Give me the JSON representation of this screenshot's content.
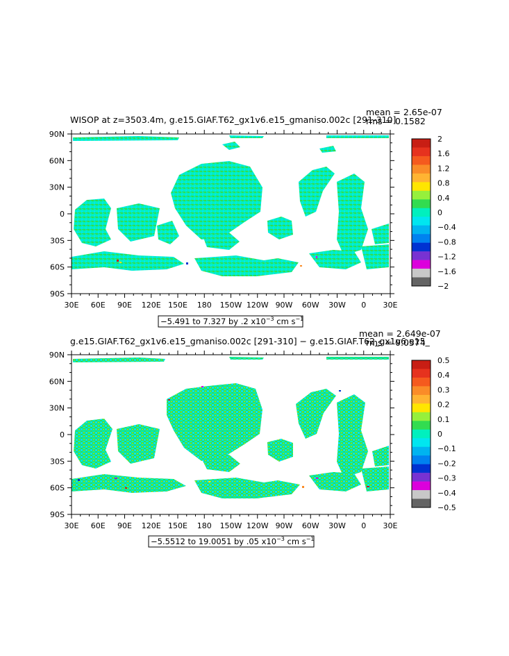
{
  "panels": [
    {
      "title": "WISOP at z=3503.4m, g.e15.GIAF.T62_gx1v6.e15_gmaniso.002c [291-310]",
      "mean_text": "mean = 2.65e-07",
      "rms_text": "rms = 0.1582",
      "range_text": "−5.491 to 7.327 by .2 x10",
      "range_exp": "−3",
      "range_unit": " cm s",
      "range_unit_exp": "−1"
    },
    {
      "title": "g.e15.GIAF.T62_gx1v6.e15_gmaniso.002c [291-310] − g.e15.GIAF.T62_gx1v6.e15_",
      "mean_text": "mean = 2.649e-07",
      "rms_text": "rms = 0.0574",
      "range_text": "−5.5512 to 19.0051 by .05 x10",
      "range_exp": "−3",
      "range_unit": " cm s",
      "range_unit_exp": "−1"
    }
  ],
  "chart_data": [
    {
      "type": "heatmap",
      "title": "WISOP at z=3503.4m, g.e15.GIAF.T62_gx1v6.e15_gmaniso.002c [291-310]",
      "x_ticks": [
        "30E",
        "60E",
        "90E",
        "120E",
        "150E",
        "180",
        "150W",
        "120W",
        "90W",
        "60W",
        "30W",
        "0",
        "30E"
      ],
      "y_ticks": [
        "90N",
        "60N",
        "30N",
        "0",
        "30S",
        "60S",
        "90S"
      ],
      "xlim": [
        30,
        390
      ],
      "ylim": [
        -90,
        90
      ],
      "colorbar": {
        "labels": [
          "2",
          "1.6",
          "1.2",
          "0.8",
          "0.4",
          "0",
          "−0.4",
          "−0.8",
          "−1.2",
          "−1.6",
          "−2"
        ],
        "colors": [
          "#c81e14",
          "#e6321e",
          "#f55a1e",
          "#fa8c28",
          "#ffb432",
          "#ffe600",
          "#96f03c",
          "#32dc50",
          "#00f0be",
          "#00e6f0",
          "#00b4f0",
          "#0082f0",
          "#0032d2",
          "#7832d2",
          "#dc00dc",
          "#c8c8c8",
          "#646464"
        ]
      },
      "mean": 2.65e-07,
      "rms": 0.1582,
      "contour_range": "-5.491 to 7.327 by .2 x10^-3 cm s^-1"
    },
    {
      "type": "heatmap",
      "title": "g.e15.GIAF.T62_gx1v6.e15_gmaniso.002c [291-310] − g.e15.GIAF.T62_gx1v6.e15_",
      "x_ticks": [
        "30E",
        "60E",
        "90E",
        "120E",
        "150E",
        "180",
        "150W",
        "120W",
        "90W",
        "60W",
        "30W",
        "0",
        "30E"
      ],
      "y_ticks": [
        "90N",
        "60N",
        "30N",
        "0",
        "30S",
        "60S",
        "90S"
      ],
      "xlim": [
        30,
        390
      ],
      "ylim": [
        -90,
        90
      ],
      "colorbar": {
        "labels": [
          "0.5",
          "0.4",
          "0.3",
          "0.2",
          "0.1",
          "0",
          "−0.1",
          "−0.2",
          "−0.3",
          "−0.4",
          "−0.5"
        ],
        "colors": [
          "#c81e14",
          "#e6321e",
          "#f55a1e",
          "#fa8c28",
          "#ffb432",
          "#ffe600",
          "#96f03c",
          "#32dc50",
          "#00f0be",
          "#00e6f0",
          "#00b4f0",
          "#0082f0",
          "#0032d2",
          "#7832d2",
          "#dc00dc",
          "#c8c8c8",
          "#646464"
        ]
      },
      "mean": 2.649e-07,
      "rms": 0.0574,
      "contour_range": "-5.5512 to 19.0051 by .05 x10^-3 cm s^-1"
    }
  ]
}
